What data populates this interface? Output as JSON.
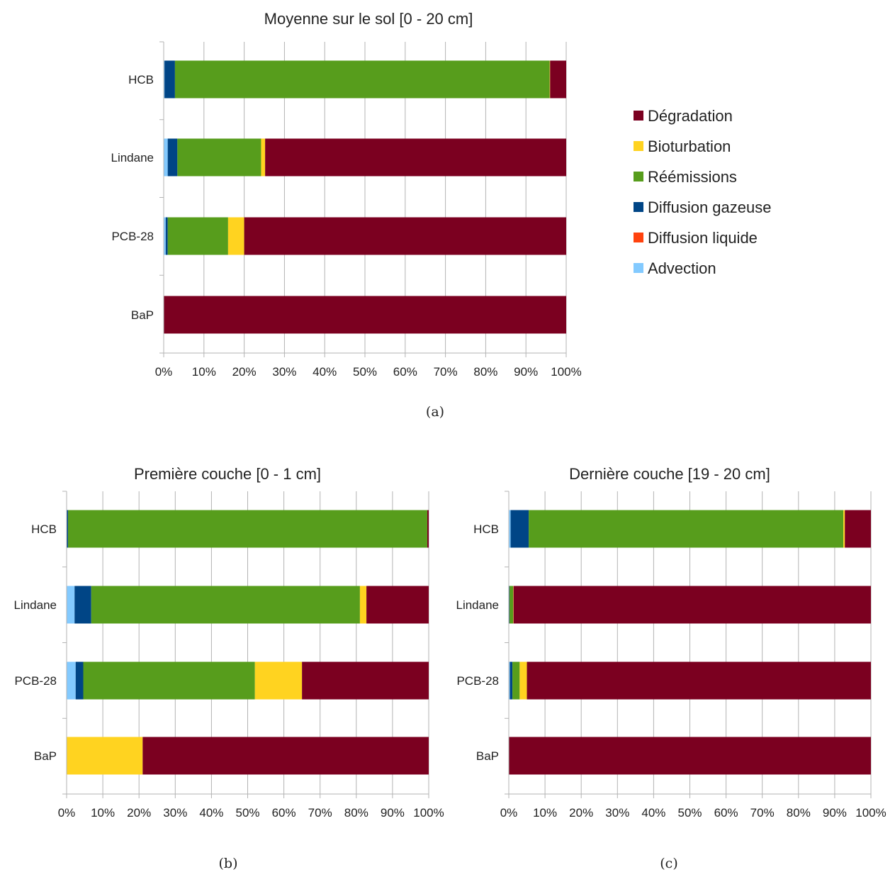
{
  "legend": [
    {
      "name": "Dégradation",
      "color": "#7b0020"
    },
    {
      "name": "Bioturbation",
      "color": "#ffd320"
    },
    {
      "name": "Réémissions",
      "color": "#579d1c"
    },
    {
      "name": "Diffusion gazeuse",
      "color": "#004586"
    },
    {
      "name": "Diffusion liquide",
      "color": "#ff420e"
    },
    {
      "name": "Advection",
      "color": "#83caff"
    }
  ],
  "captions": [
    "(a)",
    "(b)",
    "(c)"
  ],
  "chart_data": [
    {
      "type": "bar",
      "orientation": "horizontal",
      "stacked": "percent",
      "title": "Moyenne sur le sol [0 - 20 cm]",
      "categories": [
        "HCB",
        "Lindane",
        "PCB-28",
        "BaP"
      ],
      "x_ticks": [
        "0%",
        "10%",
        "20%",
        "30%",
        "40%",
        "50%",
        "60%",
        "70%",
        "80%",
        "90%",
        "100%"
      ],
      "xlim": [
        0,
        100
      ],
      "grid": true,
      "legend_position": "right",
      "series": [
        {
          "name": "Advection",
          "color": "#83caff",
          "values": [
            0.2,
            1.0,
            0.5,
            0
          ]
        },
        {
          "name": "Diffusion liquide",
          "color": "#ff420e",
          "values": [
            0,
            0,
            0,
            0
          ]
        },
        {
          "name": "Diffusion gazeuse",
          "color": "#004586",
          "values": [
            2.6,
            2.4,
            0.5,
            0
          ]
        },
        {
          "name": "Réémissions",
          "color": "#579d1c",
          "values": [
            93.1,
            20.8,
            15.0,
            0
          ]
        },
        {
          "name": "Bioturbation",
          "color": "#ffd320",
          "values": [
            0.1,
            1.0,
            4.0,
            0
          ]
        },
        {
          "name": "Dégradation",
          "color": "#7b0020",
          "values": [
            4.0,
            74.8,
            80.0,
            100
          ]
        }
      ]
    },
    {
      "type": "bar",
      "orientation": "horizontal",
      "stacked": "percent",
      "title": "Première couche [0 - 1 cm]",
      "categories": [
        "HCB",
        "Lindane",
        "PCB-28",
        "BaP"
      ],
      "x_ticks": [
        "0%",
        "10%",
        "20%",
        "30%",
        "40%",
        "50%",
        "60%",
        "70%",
        "80%",
        "90%",
        "100%"
      ],
      "xlim": [
        0,
        100
      ],
      "grid": true,
      "series": [
        {
          "name": "Advection",
          "color": "#83caff",
          "values": [
            0.1,
            2.2,
            2.5,
            0
          ]
        },
        {
          "name": "Diffusion liquide",
          "color": "#ff420e",
          "values": [
            0,
            0,
            0,
            0
          ]
        },
        {
          "name": "Diffusion gazeuse",
          "color": "#004586",
          "values": [
            0.3,
            4.6,
            2.1,
            0
          ]
        },
        {
          "name": "Réémissions",
          "color": "#579d1c",
          "values": [
            99.2,
            74.2,
            47.4,
            0
          ]
        },
        {
          "name": "Bioturbation",
          "color": "#ffd320",
          "values": [
            0,
            1.8,
            13.0,
            21.0
          ]
        },
        {
          "name": "Dégradation",
          "color": "#7b0020",
          "values": [
            0.4,
            17.2,
            35.0,
            79.0
          ]
        }
      ]
    },
    {
      "type": "bar",
      "orientation": "horizontal",
      "stacked": "percent",
      "title": "Dernière couche [19 - 20 cm]",
      "categories": [
        "HCB",
        "Lindane",
        "PCB-28",
        "BaP"
      ],
      "x_ticks": [
        "0%",
        "10%",
        "20%",
        "30%",
        "40%",
        "50%",
        "60%",
        "70%",
        "80%",
        "90%",
        "100%"
      ],
      "xlim": [
        0,
        100
      ],
      "grid": true,
      "series": [
        {
          "name": "Advection",
          "color": "#83caff",
          "values": [
            0.5,
            0.1,
            0.3,
            0
          ]
        },
        {
          "name": "Diffusion liquide",
          "color": "#ff420e",
          "values": [
            0,
            0,
            0,
            0
          ]
        },
        {
          "name": "Diffusion gazeuse",
          "color": "#004586",
          "values": [
            5.0,
            0.1,
            0.7,
            0
          ]
        },
        {
          "name": "Réémissions",
          "color": "#579d1c",
          "values": [
            86.9,
            1.0,
            2.0,
            0
          ]
        },
        {
          "name": "Bioturbation",
          "color": "#ffd320",
          "values": [
            0.4,
            0.1,
            2.0,
            0
          ]
        },
        {
          "name": "Dégradation",
          "color": "#7b0020",
          "values": [
            7.2,
            98.7,
            95.0,
            100
          ]
        }
      ]
    }
  ]
}
